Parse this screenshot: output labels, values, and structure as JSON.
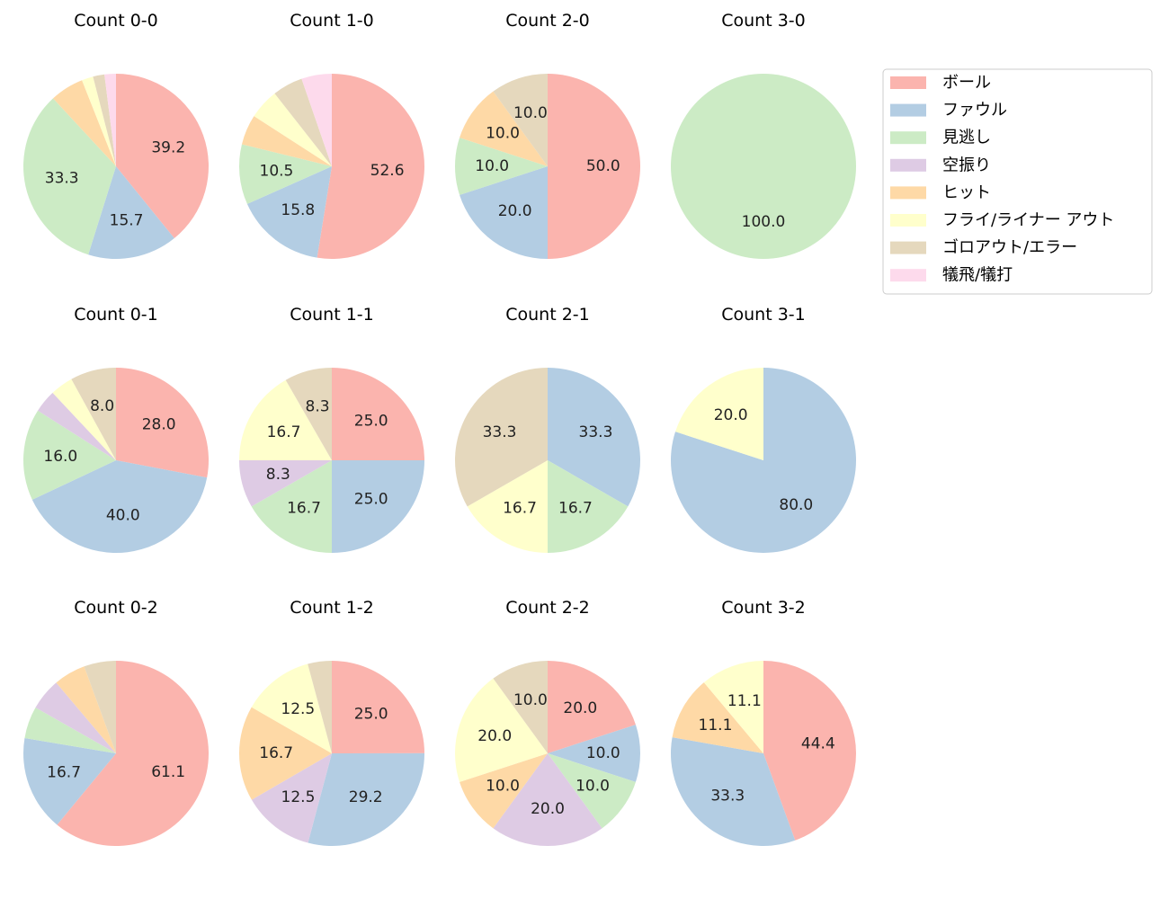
{
  "legend": {
    "placement": "right",
    "entries": [
      "ボール",
      "ファウル",
      "見逃し",
      "空振り",
      "ヒット",
      "フライ/ライナー アウト",
      "ゴロアウト/エラー",
      "犠飛/犠打"
    ],
    "colors": [
      "#fbb4ae",
      "#b3cde3",
      "#ccebc5",
      "#decbe4",
      "#fed9a6",
      "#ffffcc",
      "#e5d8bd",
      "#fddaec"
    ]
  },
  "chart_data": [
    {
      "type": "pie",
      "title": "Count 0-0",
      "values": [
        39.2,
        15.7,
        33.3,
        0,
        5.9,
        2.0,
        2.0,
        2.0
      ]
    },
    {
      "type": "pie",
      "title": "Count 1-0",
      "values": [
        52.6,
        15.8,
        10.5,
        0,
        5.3,
        5.3,
        5.3,
        5.3
      ]
    },
    {
      "type": "pie",
      "title": "Count 2-0",
      "values": [
        50.0,
        20.0,
        10.0,
        0,
        10.0,
        0,
        10.0,
        0
      ]
    },
    {
      "type": "pie",
      "title": "Count 3-0",
      "values": [
        0,
        0,
        100.0,
        0,
        0,
        0,
        0,
        0
      ]
    },
    {
      "type": "pie",
      "title": "Count 0-1",
      "values": [
        28.0,
        40.0,
        16.0,
        4.0,
        0,
        4.0,
        8.0,
        0
      ]
    },
    {
      "type": "pie",
      "title": "Count 1-1",
      "values": [
        25.0,
        25.0,
        16.7,
        8.3,
        0,
        16.7,
        8.3,
        0
      ]
    },
    {
      "type": "pie",
      "title": "Count 2-1",
      "values": [
        0,
        33.3,
        16.7,
        0,
        0,
        16.7,
        33.3,
        0
      ]
    },
    {
      "type": "pie",
      "title": "Count 3-1",
      "values": [
        0,
        80.0,
        0,
        0,
        0,
        20.0,
        0,
        0
      ]
    },
    {
      "type": "pie",
      "title": "Count 0-2",
      "values": [
        61.1,
        16.7,
        5.6,
        5.6,
        5.6,
        0,
        5.6,
        0
      ]
    },
    {
      "type": "pie",
      "title": "Count 1-2",
      "values": [
        25.0,
        29.2,
        0,
        12.5,
        16.7,
        12.5,
        4.2,
        0
      ]
    },
    {
      "type": "pie",
      "title": "Count 2-2",
      "values": [
        20.0,
        10.0,
        10.0,
        20.0,
        10.0,
        20.0,
        10.0,
        0
      ]
    },
    {
      "type": "pie",
      "title": "Count 3-2",
      "values": [
        44.4,
        33.3,
        0,
        0,
        11.1,
        11.1,
        0,
        0
      ]
    }
  ]
}
